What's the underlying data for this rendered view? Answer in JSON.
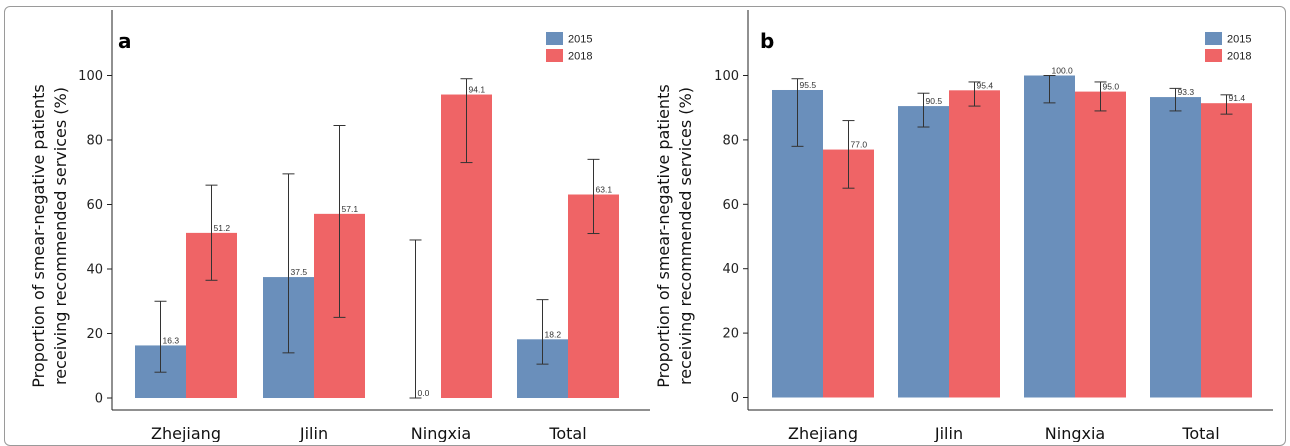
{
  "colors": {
    "s2015": "#6a8fbb",
    "s2018": "#ef6466",
    "axis": "#222222",
    "errorbar": "#333333"
  },
  "chart_data": [
    {
      "panel": "a",
      "type": "bar",
      "ylabel_line1": "Proportion of smear-negative patients",
      "ylabel_line2": "receiving recommended services (%)",
      "xlabel": "",
      "ylim": [
        0,
        110
      ],
      "yticks": [
        "0",
        "20",
        "40",
        "60",
        "80",
        "100"
      ],
      "ytick_values": [
        0,
        20,
        40,
        60,
        80,
        100
      ],
      "categories": [
        "Zhejiang",
        "Jilin",
        "Ningxia",
        "Total"
      ],
      "legend_position": "top-right",
      "series": [
        {
          "name": "2015",
          "values": [
            16.3,
            37.5,
            0.0,
            18.2
          ],
          "labels": [
            "16.3",
            "37.5",
            "0.0",
            "18.2"
          ],
          "err_low": [
            8,
            14,
            0,
            10.5
          ],
          "err_high": [
            30,
            69.5,
            49,
            30.5
          ]
        },
        {
          "name": "2018",
          "values": [
            51.2,
            57.1,
            94.1,
            63.1
          ],
          "labels": [
            "51.2",
            "57.1",
            "94.1",
            "63.1"
          ],
          "err_low": [
            36.5,
            25,
            73,
            51
          ],
          "err_high": [
            66,
            84.5,
            99,
            74
          ]
        }
      ]
    },
    {
      "panel": "b",
      "type": "bar",
      "ylabel_line1": "Proportion of smear-negative patients",
      "ylabel_line2": "receiving recommended services (%)",
      "xlabel": "",
      "ylim": [
        -5,
        115
      ],
      "yticks": [
        "0",
        "20",
        "40",
        "60",
        "80",
        "100"
      ],
      "ytick_values": [
        0,
        20,
        40,
        60,
        80,
        100
      ],
      "categories": [
        "Zhejiang",
        "Jilin",
        "Ningxia",
        "Total"
      ],
      "legend_position": "top-right",
      "series": [
        {
          "name": "2015",
          "values": [
            95.5,
            90.5,
            100.0,
            93.3
          ],
          "labels": [
            "95.5",
            "90.5",
            "100.0",
            "93.3"
          ],
          "err_low": [
            78,
            84,
            91.5,
            89
          ],
          "err_high": [
            99,
            94.5,
            100,
            96
          ]
        },
        {
          "name": "2018",
          "values": [
            77.0,
            95.4,
            95.0,
            91.4
          ],
          "labels": [
            "77.0",
            "95.4",
            "95.0",
            "91.4"
          ],
          "err_low": [
            65,
            90.5,
            89,
            88
          ],
          "err_high": [
            86,
            98,
            98,
            94
          ]
        }
      ]
    }
  ]
}
